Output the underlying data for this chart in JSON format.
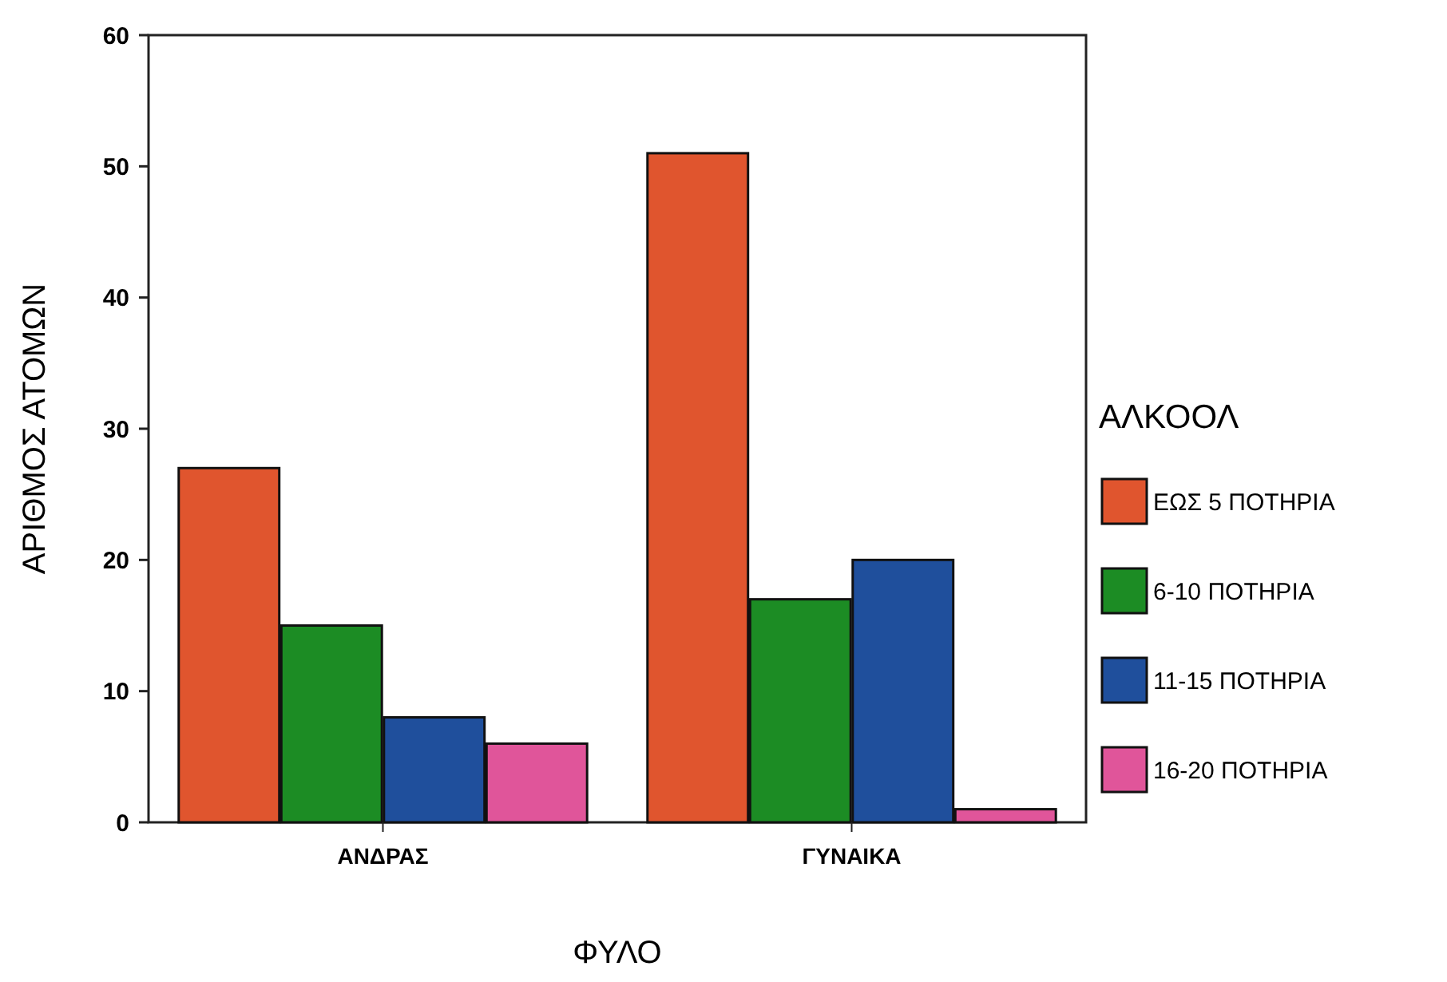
{
  "chart_data": {
    "type": "bar",
    "xlabel": "ΦΥΛΟ",
    "ylabel": "ΑΡΙΘΜΟΣ ΑΤΟΜΩΝ",
    "legend_title": "ΑΛΚΟΟΛ",
    "legend": "right",
    "categories": [
      "ΑΝΔΡΑΣ",
      "ΓΥΝΑΙΚΑ"
    ],
    "series": [
      {
        "name": "ΕΩΣ 5 ΠΟΤΗΡΙΑ",
        "color": "#e0552e",
        "values": [
          27,
          51
        ]
      },
      {
        "name": "6-10 ΠΟΤΗΡΙΑ",
        "color": "#1c8c24",
        "values": [
          15,
          17
        ]
      },
      {
        "name": "11-15 ΠΟΤΗΡΙΑ",
        "color": "#1f4f9c",
        "values": [
          8,
          20
        ]
      },
      {
        "name": "16-20 ΠΟΤΗΡΙΑ",
        "color": "#e0559a",
        "values": [
          6,
          1
        ]
      }
    ],
    "ylim": [
      0,
      60
    ],
    "yticks": [
      0,
      10,
      20,
      30,
      40,
      50,
      60
    ]
  }
}
